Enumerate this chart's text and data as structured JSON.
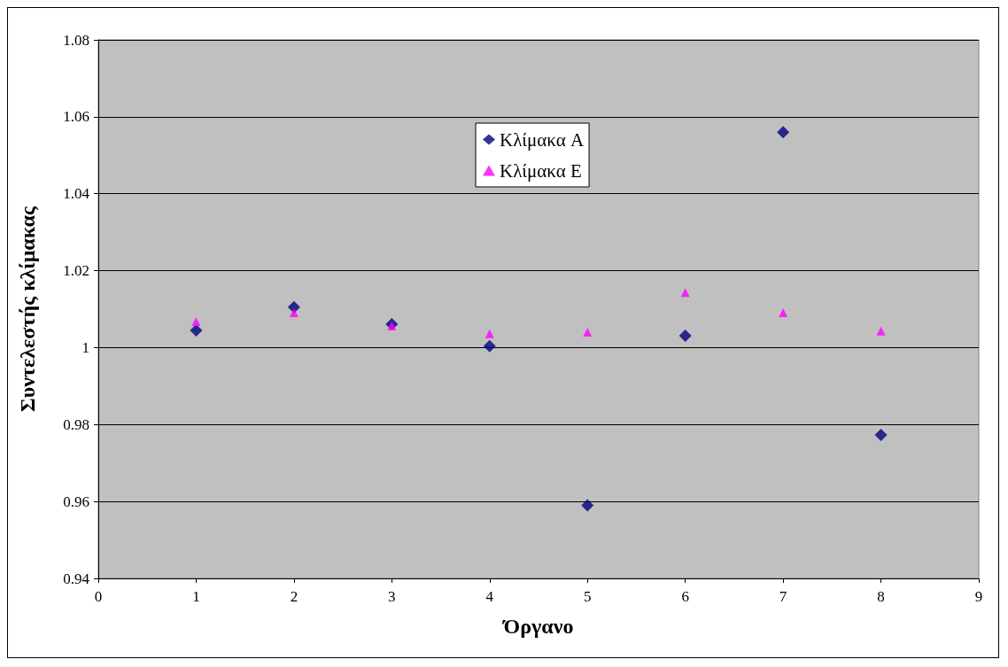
{
  "chart_data": {
    "type": "scatter",
    "xlabel": "Όργανο",
    "ylabel": "Συντελεστής κλίμακας",
    "x": [
      1,
      2,
      3,
      4,
      5,
      6,
      7,
      8
    ],
    "series": [
      {
        "name": "Κλίμακα A",
        "color": "#000080",
        "marker": "diamond",
        "values": [
          1.0045,
          1.0105,
          1.0061,
          1.0004,
          0.959,
          1.0031,
          1.056,
          0.9773
        ]
      },
      {
        "name": "Κλίμακα E",
        "color": "#ff00ff",
        "marker": "triangle",
        "values": [
          1.0068,
          1.0091,
          1.0057,
          1.0036,
          1.004,
          1.0143,
          1.0091,
          1.0043
        ]
      }
    ],
    "xlim": [
      0,
      9
    ],
    "xticks": [
      0,
      1,
      2,
      3,
      4,
      5,
      6,
      7,
      8,
      9
    ],
    "ylim": [
      0.94,
      1.08
    ],
    "yticks": [
      0.94,
      0.96,
      0.98,
      1,
      1.02,
      1.04,
      1.06,
      1.08
    ],
    "grid": "y",
    "legend": "top"
  }
}
